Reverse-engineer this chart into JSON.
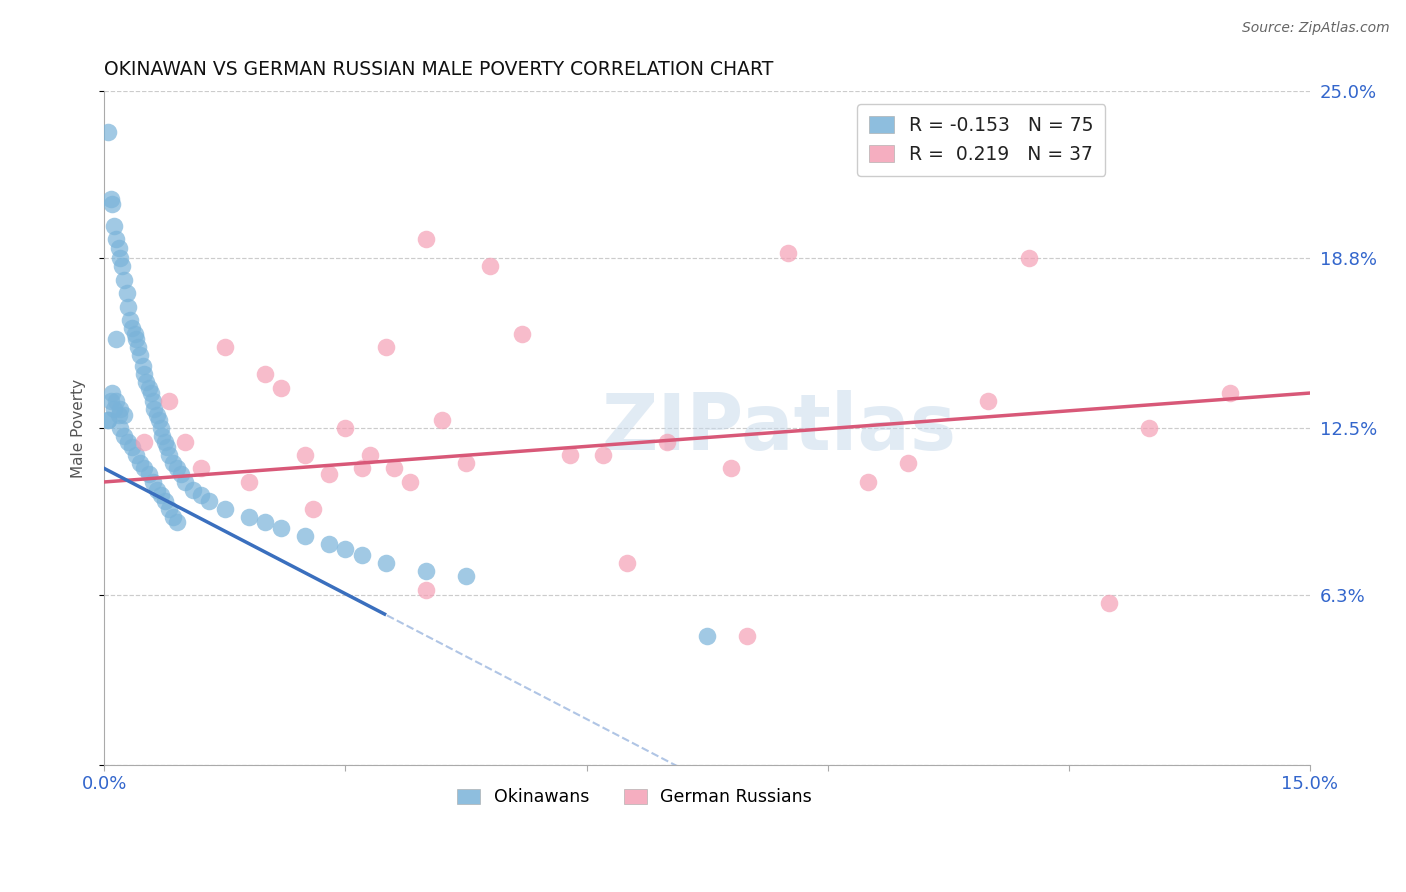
{
  "title": "OKINAWAN VS GERMAN RUSSIAN MALE POVERTY CORRELATION CHART",
  "source": "Source: ZipAtlas.com",
  "ylabel": "Male Poverty",
  "xlim": [
    0.0,
    15.0
  ],
  "ylim": [
    0.0,
    25.0
  ],
  "x_tick_positions": [
    0.0,
    3.0,
    6.0,
    9.0,
    12.0,
    15.0
  ],
  "x_tick_labels": [
    "0.0%",
    "",
    "",
    "",
    "",
    "15.0%"
  ],
  "y_tick_positions": [
    0.0,
    6.3,
    12.5,
    18.8,
    25.0
  ],
  "y_tick_labels": [
    "",
    "6.3%",
    "12.5%",
    "18.8%",
    "25.0%"
  ],
  "watermark": "ZIPatlas",
  "okinawan_color": "#7ab3d9",
  "german_russian_color": "#f4a0b5",
  "okinawan_line_color": "#3a6fbe",
  "german_russian_line_color": "#d85878",
  "R_okinawan": -0.153,
  "N_okinawan": 75,
  "R_german_russian": 0.219,
  "N_german_russian": 37,
  "legend_label_1": "Okinawans",
  "legend_label_2": "German Russians",
  "background_color": "#ffffff",
  "grid_color": "#cccccc",
  "tick_color": "#3366cc",
  "spine_color": "#aaaaaa",
  "title_color": "#111111",
  "source_color": "#666666",
  "ylabel_color": "#555555",
  "watermark_color": "#c5d8ea",
  "watermark_alpha": 0.5,
  "dot_size": 160,
  "dot_alpha": 0.7,
  "ok_line_intercept": 11.0,
  "ok_line_slope": -1.55,
  "gr_line_intercept": 10.5,
  "gr_line_slope": 0.22,
  "ok_solid_end_x": 3.5,
  "ok_dash_end_x": 9.5
}
